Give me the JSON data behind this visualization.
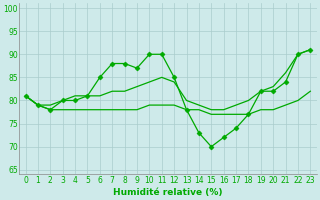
{
  "xlabel": "Humidité relative (%)",
  "ylabel_ticks": [
    65,
    70,
    75,
    80,
    85,
    90,
    95,
    100
  ],
  "xlim": [
    -0.5,
    23.5
  ],
  "ylim": [
    64,
    101
  ],
  "background_color": "#ceeaea",
  "grid_color": "#aacccc",
  "line_color": "#00aa00",
  "lines": [
    {
      "x": [
        0,
        1,
        2,
        3,
        4,
        5,
        6,
        7,
        8,
        9,
        10,
        11,
        12,
        13,
        14,
        15,
        16,
        17,
        18,
        19,
        20,
        21,
        22,
        23
      ],
      "y": [
        81,
        79,
        78,
        80,
        80,
        81,
        85,
        88,
        88,
        87,
        90,
        90,
        85,
        78,
        73,
        70,
        72,
        74,
        77,
        82,
        82,
        84,
        90,
        91
      ],
      "marker": "D",
      "markersize": 2.5,
      "linewidth": 0.9
    },
    {
      "x": [
        0,
        1,
        2,
        3,
        4,
        5,
        6,
        7,
        8,
        9,
        10,
        11,
        12,
        13,
        14,
        15,
        16,
        17,
        18,
        19,
        20,
        21,
        22,
        23
      ],
      "y": [
        81,
        79,
        79,
        80,
        81,
        81,
        81,
        82,
        82,
        83,
        84,
        85,
        84,
        80,
        79,
        78,
        78,
        79,
        80,
        82,
        83,
        86,
        90,
        91
      ],
      "marker": null,
      "markersize": 0,
      "linewidth": 0.9
    },
    {
      "x": [
        0,
        1,
        2,
        3,
        4,
        5,
        6,
        7,
        8,
        9,
        10,
        11,
        12,
        13,
        14,
        15,
        16,
        17,
        18,
        19,
        20,
        21,
        22,
        23
      ],
      "y": [
        81,
        79,
        78,
        78,
        78,
        78,
        78,
        78,
        78,
        78,
        79,
        79,
        79,
        78,
        78,
        77,
        77,
        77,
        77,
        78,
        78,
        79,
        80,
        82
      ],
      "marker": null,
      "markersize": 0,
      "linewidth": 0.9
    }
  ],
  "tick_fontsize": 5.5,
  "xlabel_fontsize": 6.5
}
